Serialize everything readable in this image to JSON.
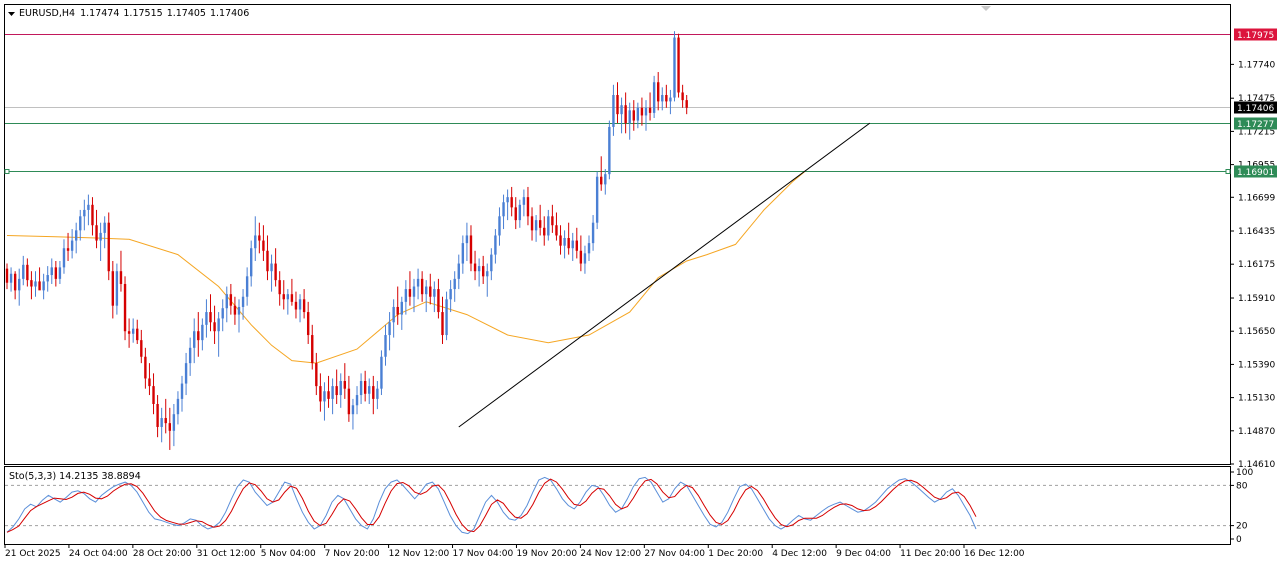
{
  "chart_data": {
    "type": "candlestick",
    "symbol": "EURUSD",
    "timeframe": "H4",
    "ohlc_readout": [
      "1.17474",
      "1.17515",
      "1.17405",
      "1.17406"
    ],
    "price_axis": {
      "ylim": [
        1.1461,
        1.18205
      ],
      "ticks": [
        "1.17740",
        "1.17475",
        "1.17215",
        "1.16955",
        "1.16699",
        "1.16435",
        "1.16175",
        "1.15910",
        "1.15650",
        "1.15390",
        "1.15130",
        "1.14870",
        "1.14610"
      ]
    },
    "price_levels": [
      {
        "label": "1.17975",
        "value": 1.17975,
        "line_color": "#c2185b",
        "box_color": "#dc143c",
        "text_color": "#ffffff"
      },
      {
        "label": "1.17406",
        "value": 1.17406,
        "line_color": "#c0c0c0",
        "box_color": "#000000",
        "text_color": "#ffffff"
      },
      {
        "label": "1.17277",
        "value": 1.17277,
        "line_color": "#2e8b57",
        "box_color": "#2e8b57",
        "text_color": "#ffffff"
      },
      {
        "label": "1.16901",
        "value": 1.16901,
        "line_color": "#2e8b57",
        "box_color": "#2e8b57",
        "text_color": "#ffffff"
      }
    ],
    "trendline": {
      "from": [
        111,
        1.149
      ],
      "to": [
        212,
        1.1728
      ]
    },
    "moving_average": {
      "color": "#f5a623",
      "points": [
        [
          0,
          1.164
        ],
        [
          12,
          1.1639
        ],
        [
          22,
          1.1638
        ],
        [
          30,
          1.1637
        ],
        [
          42,
          1.1625
        ],
        [
          52,
          1.16
        ],
        [
          60,
          1.157
        ],
        [
          65,
          1.1554
        ],
        [
          70,
          1.1542
        ],
        [
          76,
          1.154
        ],
        [
          86,
          1.1551
        ],
        [
          96,
          1.1578
        ],
        [
          103,
          1.1588
        ],
        [
          113,
          1.1578
        ],
        [
          123,
          1.1562
        ],
        [
          133,
          1.1556
        ],
        [
          143,
          1.1562
        ],
        [
          153,
          1.158
        ],
        [
          160,
          1.1607
        ],
        [
          167,
          1.162
        ],
        [
          172,
          1.1625
        ],
        [
          179,
          1.1633
        ],
        [
          186,
          1.166
        ],
        [
          193,
          1.1682
        ],
        [
          196,
          1.169
        ]
      ]
    },
    "candles": [
      [
        1.1614,
        1.1618,
        1.1598,
        1.1603
      ],
      [
        1.1603,
        1.1615,
        1.1596,
        1.161
      ],
      [
        1.161,
        1.1612,
        1.159,
        1.1597
      ],
      [
        1.1597,
        1.1614,
        1.1585,
        1.1606
      ],
      [
        1.1606,
        1.1624,
        1.1601,
        1.1617
      ],
      [
        1.1617,
        1.1622,
        1.16,
        1.1605
      ],
      [
        1.1605,
        1.1612,
        1.159,
        1.16
      ],
      [
        1.16,
        1.1612,
        1.1592,
        1.1604
      ],
      [
        1.1604,
        1.1615,
        1.1598,
        1.1597
      ],
      [
        1.1597,
        1.161,
        1.159,
        1.1604
      ],
      [
        1.1604,
        1.1616,
        1.1596,
        1.1609
      ],
      [
        1.1609,
        1.1622,
        1.1602,
        1.1615
      ],
      [
        1.1615,
        1.162,
        1.16,
        1.1606
      ],
      [
        1.1606,
        1.162,
        1.1602,
        1.1615
      ],
      [
        1.1615,
        1.1637,
        1.161,
        1.163
      ],
      [
        1.163,
        1.1642,
        1.162,
        1.1628
      ],
      [
        1.1628,
        1.1645,
        1.1622,
        1.1636
      ],
      [
        1.1636,
        1.165,
        1.1626,
        1.1644
      ],
      [
        1.1644,
        1.166,
        1.1636,
        1.1655
      ],
      [
        1.1655,
        1.1668,
        1.1644,
        1.166
      ],
      [
        1.166,
        1.1672,
        1.1648,
        1.1664
      ],
      [
        1.1664,
        1.167,
        1.164,
        1.1648
      ],
      [
        1.1648,
        1.166,
        1.163,
        1.1636
      ],
      [
        1.1636,
        1.165,
        1.162,
        1.1642
      ],
      [
        1.1642,
        1.1655,
        1.163,
        1.165
      ],
      [
        1.165,
        1.1658,
        1.1605,
        1.1612
      ],
      [
        1.1612,
        1.162,
        1.1575,
        1.1585
      ],
      [
        1.1585,
        1.1618,
        1.1578,
        1.1612
      ],
      [
        1.1612,
        1.1628,
        1.1596,
        1.1602
      ],
      [
        1.1602,
        1.1608,
        1.1558,
        1.1565
      ],
      [
        1.1565,
        1.1575,
        1.1552,
        1.1563
      ],
      [
        1.1563,
        1.1575,
        1.1556,
        1.1567
      ],
      [
        1.1567,
        1.1574,
        1.1555,
        1.1558
      ],
      [
        1.1558,
        1.1566,
        1.154,
        1.1545
      ],
      [
        1.1545,
        1.1552,
        1.152,
        1.1528
      ],
      [
        1.1528,
        1.154,
        1.1515,
        1.1522
      ],
      [
        1.1522,
        1.1532,
        1.15,
        1.1508
      ],
      [
        1.1508,
        1.1515,
        1.1482,
        1.149
      ],
      [
        1.149,
        1.1505,
        1.1478,
        1.1497
      ],
      [
        1.1497,
        1.1512,
        1.1485,
        1.1493
      ],
      [
        1.1493,
        1.1505,
        1.1472,
        1.1487
      ],
      [
        1.1487,
        1.1508,
        1.1475,
        1.15
      ],
      [
        1.15,
        1.1518,
        1.1492,
        1.1512
      ],
      [
        1.1512,
        1.153,
        1.1502,
        1.1524
      ],
      [
        1.1524,
        1.1548,
        1.1515,
        1.154
      ],
      [
        1.154,
        1.156,
        1.153,
        1.1552
      ],
      [
        1.1552,
        1.1575,
        1.154,
        1.1565
      ],
      [
        1.1565,
        1.158,
        1.1545,
        1.1558
      ],
      [
        1.1558,
        1.1575,
        1.155,
        1.157
      ],
      [
        1.157,
        1.159,
        1.156,
        1.158
      ],
      [
        1.158,
        1.1594,
        1.1565,
        1.1572
      ],
      [
        1.1572,
        1.1585,
        1.1555,
        1.1565
      ],
      [
        1.1565,
        1.158,
        1.1545,
        1.1575
      ],
      [
        1.1575,
        1.159,
        1.1565,
        1.1583
      ],
      [
        1.1583,
        1.16,
        1.1572,
        1.1594
      ],
      [
        1.1594,
        1.1602,
        1.1578,
        1.1585
      ],
      [
        1.1585,
        1.1592,
        1.157,
        1.1578
      ],
      [
        1.1578,
        1.159,
        1.1564,
        1.1584
      ],
      [
        1.1584,
        1.1598,
        1.1574,
        1.1592
      ],
      [
        1.1592,
        1.1615,
        1.1585,
        1.1608
      ],
      [
        1.1608,
        1.1636,
        1.16,
        1.163
      ],
      [
        1.163,
        1.1655,
        1.162,
        1.164
      ],
      [
        1.164,
        1.165,
        1.1626,
        1.1636
      ],
      [
        1.1636,
        1.1648,
        1.162,
        1.1628
      ],
      [
        1.1628,
        1.164,
        1.1605,
        1.1612
      ],
      [
        1.1612,
        1.1625,
        1.1596,
        1.1618
      ],
      [
        1.1618,
        1.163,
        1.16,
        1.1605
      ],
      [
        1.1605,
        1.1612,
        1.1585,
        1.1594
      ],
      [
        1.1594,
        1.1605,
        1.1582,
        1.159
      ],
      [
        1.159,
        1.1598,
        1.1578,
        1.1594
      ],
      [
        1.1594,
        1.1606,
        1.1585,
        1.1588
      ],
      [
        1.1588,
        1.1596,
        1.1575,
        1.1582
      ],
      [
        1.1582,
        1.1594,
        1.1572,
        1.159
      ],
      [
        1.159,
        1.1598,
        1.1575,
        1.158
      ],
      [
        1.158,
        1.1588,
        1.1555,
        1.1562
      ],
      [
        1.1562,
        1.157,
        1.1535,
        1.154
      ],
      [
        1.154,
        1.1548,
        1.1515,
        1.1522
      ],
      [
        1.1522,
        1.1532,
        1.1502,
        1.151
      ],
      [
        1.151,
        1.1525,
        1.1495,
        1.1518
      ],
      [
        1.1518,
        1.153,
        1.1505,
        1.1512
      ],
      [
        1.1512,
        1.1528,
        1.15,
        1.1522
      ],
      [
        1.1522,
        1.1535,
        1.1508,
        1.1515
      ],
      [
        1.1515,
        1.1532,
        1.1505,
        1.1526
      ],
      [
        1.1526,
        1.154,
        1.1512,
        1.152
      ],
      [
        1.152,
        1.153,
        1.1494,
        1.15
      ],
      [
        1.15,
        1.1512,
        1.1488,
        1.1507
      ],
      [
        1.1507,
        1.1522,
        1.15,
        1.1515
      ],
      [
        1.1515,
        1.1532,
        1.1508,
        1.1526
      ],
      [
        1.1526,
        1.1534,
        1.151,
        1.1516
      ],
      [
        1.1516,
        1.1528,
        1.1508,
        1.1522
      ],
      [
        1.1522,
        1.153,
        1.15,
        1.1512
      ],
      [
        1.1512,
        1.1526,
        1.1504,
        1.152
      ],
      [
        1.152,
        1.155,
        1.1515,
        1.1545
      ],
      [
        1.1545,
        1.157,
        1.1538,
        1.1562
      ],
      [
        1.1562,
        1.158,
        1.155,
        1.1572
      ],
      [
        1.1572,
        1.159,
        1.156,
        1.1584
      ],
      [
        1.1584,
        1.16,
        1.157,
        1.1578
      ],
      [
        1.1578,
        1.1592,
        1.1566,
        1.1588
      ],
      [
        1.1588,
        1.1605,
        1.1578,
        1.1598
      ],
      [
        1.1598,
        1.1612,
        1.1585,
        1.1592
      ],
      [
        1.1592,
        1.1606,
        1.158,
        1.16
      ],
      [
        1.16,
        1.1614,
        1.159,
        1.1606
      ],
      [
        1.1606,
        1.1612,
        1.1588,
        1.1594
      ],
      [
        1.1594,
        1.1605,
        1.158,
        1.16
      ],
      [
        1.16,
        1.161,
        1.1586,
        1.1592
      ],
      [
        1.1592,
        1.1604,
        1.158,
        1.1598
      ],
      [
        1.1598,
        1.1606,
        1.1575,
        1.158
      ],
      [
        1.158,
        1.1592,
        1.1555,
        1.1562
      ],
      [
        1.1562,
        1.1596,
        1.1558,
        1.159
      ],
      [
        1.159,
        1.1605,
        1.158,
        1.1598
      ],
      [
        1.1598,
        1.1612,
        1.1588,
        1.1606
      ],
      [
        1.1606,
        1.1625,
        1.1598,
        1.1618
      ],
      [
        1.1618,
        1.164,
        1.161,
        1.1634
      ],
      [
        1.1634,
        1.165,
        1.162,
        1.164
      ],
      [
        1.164,
        1.1648,
        1.1612,
        1.1618
      ],
      [
        1.1618,
        1.1628,
        1.1605,
        1.1612
      ],
      [
        1.1612,
        1.1622,
        1.16,
        1.1616
      ],
      [
        1.1616,
        1.1624,
        1.1602,
        1.1608
      ],
      [
        1.1608,
        1.1618,
        1.1592,
        1.1612
      ],
      [
        1.1612,
        1.163,
        1.1605,
        1.1625
      ],
      [
        1.1625,
        1.1645,
        1.1618,
        1.164
      ],
      [
        1.164,
        1.1662,
        1.1632,
        1.1655
      ],
      [
        1.1655,
        1.1672,
        1.1645,
        1.1666
      ],
      [
        1.1666,
        1.1676,
        1.1652,
        1.167
      ],
      [
        1.167,
        1.1678,
        1.1655,
        1.1662
      ],
      [
        1.1662,
        1.167,
        1.1645,
        1.1652
      ],
      [
        1.1652,
        1.1668,
        1.1646,
        1.1664
      ],
      [
        1.1664,
        1.1676,
        1.1655,
        1.167
      ],
      [
        1.167,
        1.1678,
        1.1648,
        1.1655
      ],
      [
        1.1655,
        1.1662,
        1.1636,
        1.1644
      ],
      [
        1.1644,
        1.1656,
        1.1635,
        1.1652
      ],
      [
        1.1652,
        1.1664,
        1.164,
        1.1646
      ],
      [
        1.1646,
        1.1655,
        1.1632,
        1.164
      ],
      [
        1.164,
        1.166,
        1.1636,
        1.1655
      ],
      [
        1.1655,
        1.1664,
        1.1642,
        1.1648
      ],
      [
        1.1648,
        1.1658,
        1.1636,
        1.164
      ],
      [
        1.164,
        1.1648,
        1.1625,
        1.1632
      ],
      [
        1.1632,
        1.1644,
        1.1622,
        1.1638
      ],
      [
        1.1638,
        1.165,
        1.1625,
        1.163
      ],
      [
        1.163,
        1.1642,
        1.162,
        1.1636
      ],
      [
        1.1636,
        1.1646,
        1.1622,
        1.1628
      ],
      [
        1.1628,
        1.164,
        1.1612,
        1.1618
      ],
      [
        1.1618,
        1.1632,
        1.161,
        1.1626
      ],
      [
        1.1626,
        1.164,
        1.162,
        1.1634
      ],
      [
        1.1634,
        1.1656,
        1.1628,
        1.165
      ],
      [
        1.165,
        1.169,
        1.1645,
        1.1686
      ],
      [
        1.1686,
        1.1702,
        1.1675,
        1.168
      ],
      [
        1.168,
        1.1692,
        1.1672,
        1.1688
      ],
      [
        1.1688,
        1.173,
        1.1684,
        1.1725
      ],
      [
        1.1725,
        1.1758,
        1.1718,
        1.175
      ],
      [
        1.175,
        1.176,
        1.1728,
        1.1735
      ],
      [
        1.1735,
        1.1748,
        1.172,
        1.1742
      ],
      [
        1.1742,
        1.1752,
        1.172,
        1.1728
      ],
      [
        1.1728,
        1.1744,
        1.1715,
        1.1738
      ],
      [
        1.1738,
        1.1746,
        1.1722,
        1.173
      ],
      [
        1.173,
        1.1744,
        1.1724,
        1.174
      ],
      [
        1.174,
        1.1748,
        1.1726,
        1.1734
      ],
      [
        1.1734,
        1.1746,
        1.1722,
        1.174
      ],
      [
        1.174,
        1.1752,
        1.173,
        1.1736
      ],
      [
        1.1736,
        1.1765,
        1.1732,
        1.176
      ],
      [
        1.176,
        1.1768,
        1.1738,
        1.1745
      ],
      [
        1.1745,
        1.1756,
        1.1738,
        1.175
      ],
      [
        1.175,
        1.1758,
        1.174,
        1.1745
      ],
      [
        1.1745,
        1.1754,
        1.1735,
        1.1748
      ],
      [
        1.1748,
        1.18,
        1.1745,
        1.1795
      ],
      [
        1.1795,
        1.1798,
        1.1748,
        1.1752
      ],
      [
        1.1752,
        1.1758,
        1.174,
        1.1746
      ],
      [
        1.1746,
        1.175,
        1.1735,
        1.174
      ]
    ],
    "time_axis": {
      "labels": [
        "21 Oct 2025",
        "24 Oct 04:00",
        "28 Oct 20:00",
        "31 Oct 12:00",
        "5 Nov 04:00",
        "7 Nov 20:00",
        "12 Nov 12:00",
        "17 Nov 04:00",
        "19 Nov 20:00",
        "24 Nov 12:00",
        "27 Nov 04:00",
        "1 Dec 20:00",
        "4 Dec 12:00",
        "9 Dec 04:00",
        "11 Dec 20:00",
        "16 Dec 12:00"
      ],
      "label_indices": [
        0,
        16,
        32,
        48,
        64,
        80,
        96,
        112,
        128,
        144,
        160,
        176,
        192,
        208,
        224,
        240
      ],
      "label_start_index": 0,
      "label_end_index": 240
    },
    "stochastic": {
      "label": "Sto(5,3,3) 14.2135 38.8894",
      "ylim": [
        0,
        100
      ],
      "ticks": [
        "100",
        "80",
        "20",
        "0"
      ],
      "levels": [
        20,
        80
      ],
      "main_color": "#5b8fd9",
      "signal_color": "#d50000",
      "main": [
        10,
        18,
        30,
        45,
        52,
        48,
        58,
        65,
        60,
        55,
        62,
        70,
        72,
        68,
        60,
        55,
        65,
        72,
        78,
        82,
        85,
        80,
        70,
        55,
        40,
        30,
        28,
        25,
        22,
        20,
        24,
        30,
        28,
        20,
        15,
        18,
        25,
        40,
        60,
        78,
        88,
        85,
        70,
        60,
        50,
        55,
        70,
        85,
        82,
        60,
        40,
        25,
        15,
        20,
        35,
        55,
        65,
        60,
        45,
        30,
        20,
        15,
        30,
        55,
        75,
        85,
        88,
        80,
        70,
        60,
        70,
        82,
        85,
        75,
        55,
        35,
        20,
        10,
        8,
        15,
        35,
        55,
        65,
        55,
        40,
        30,
        28,
        35,
        50,
        70,
        88,
        92,
        88,
        75,
        60,
        50,
        45,
        55,
        70,
        80,
        78,
        65,
        50,
        40,
        45,
        60,
        78,
        90,
        92,
        85,
        70,
        55,
        60,
        75,
        85,
        80,
        65,
        50,
        35,
        22,
        18,
        25,
        40,
        60,
        78,
        82,
        75,
        60,
        45,
        30,
        20,
        15,
        20,
        28,
        35,
        30,
        28,
        35,
        42,
        48,
        52,
        55,
        50,
        45,
        40,
        42,
        48,
        55,
        65,
        75,
        82,
        88,
        90,
        85,
        78,
        70,
        62,
        55,
        60,
        70,
        75,
        65,
        50,
        35,
        15
      ]
    }
  }
}
